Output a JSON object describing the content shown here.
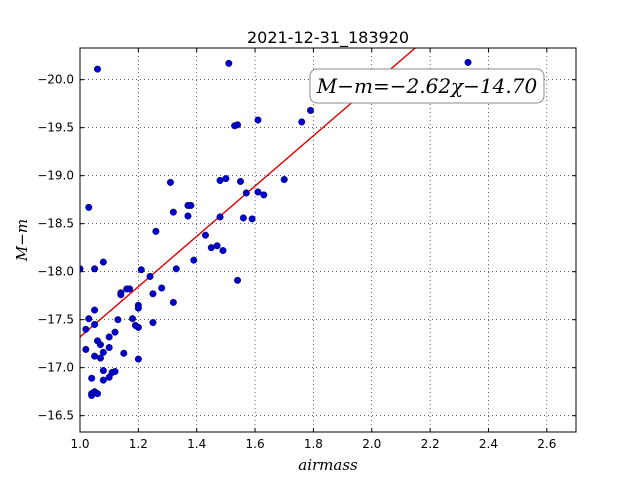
{
  "chart_data": {
    "type": "scatter",
    "title": "2021-12-31_183920",
    "xlabel": "airmass",
    "ylabel": "M−m",
    "xlim": [
      1.0,
      2.7
    ],
    "ylim": [
      -20.33,
      -16.33
    ],
    "y_inverted": true,
    "grid": true,
    "x_ticks": [
      1.0,
      1.2,
      1.4,
      1.6,
      1.8,
      2.0,
      2.2,
      2.4,
      2.6
    ],
    "x_tick_labels": [
      "1.0",
      "1.2",
      "1.4",
      "1.6",
      "1.8",
      "2.0",
      "2.2",
      "2.4",
      "2.6"
    ],
    "y_ticks": [
      -16.5,
      -17.0,
      -17.5,
      -18.0,
      -18.5,
      -19.0,
      -19.5,
      -20.0
    ],
    "y_tick_labels": [
      "−16.5",
      "−17.0",
      "−17.5",
      "−18.0",
      "−18.5",
      "−19.0",
      "−19.5",
      "−20.0"
    ],
    "annotation": "M−m=−2.62χ−14.70",
    "fit": {
      "slope": -2.62,
      "intercept": -14.7,
      "color": "#e00000"
    },
    "marker_color": "#0000cc",
    "points": [
      [
        1.0,
        -18.03
      ],
      [
        1.02,
        -17.19
      ],
      [
        1.02,
        -17.4
      ],
      [
        1.03,
        -17.51
      ],
      [
        1.03,
        -18.67
      ],
      [
        1.04,
        -16.89
      ],
      [
        1.04,
        -16.73
      ],
      [
        1.04,
        -16.71
      ],
      [
        1.05,
        -16.75
      ],
      [
        1.05,
        -17.12
      ],
      [
        1.05,
        -17.45
      ],
      [
        1.05,
        -17.6
      ],
      [
        1.05,
        -18.03
      ],
      [
        1.06,
        -16.73
      ],
      [
        1.06,
        -17.28
      ],
      [
        1.06,
        -20.11
      ],
      [
        1.07,
        -17.1
      ],
      [
        1.07,
        -17.24
      ],
      [
        1.08,
        -16.87
      ],
      [
        1.08,
        -16.97
      ],
      [
        1.08,
        -17.16
      ],
      [
        1.08,
        -18.1
      ],
      [
        1.1,
        -16.9
      ],
      [
        1.1,
        -17.21
      ],
      [
        1.1,
        -17.32
      ],
      [
        1.11,
        -16.95
      ],
      [
        1.12,
        -16.96
      ],
      [
        1.12,
        -17.37
      ],
      [
        1.13,
        -17.5
      ],
      [
        1.14,
        -17.78
      ],
      [
        1.14,
        -17.76
      ],
      [
        1.15,
        -17.15
      ],
      [
        1.16,
        -17.82
      ],
      [
        1.17,
        -17.82
      ],
      [
        1.18,
        -17.51
      ],
      [
        1.19,
        -17.44
      ],
      [
        1.2,
        -17.09
      ],
      [
        1.2,
        -17.42
      ],
      [
        1.2,
        -17.65
      ],
      [
        1.2,
        -17.62
      ],
      [
        1.21,
        -18.02
      ],
      [
        1.24,
        -17.95
      ],
      [
        1.25,
        -17.47
      ],
      [
        1.25,
        -17.77
      ],
      [
        1.26,
        -18.42
      ],
      [
        1.28,
        -17.83
      ],
      [
        1.31,
        -18.93
      ],
      [
        1.32,
        -18.62
      ],
      [
        1.32,
        -17.68
      ],
      [
        1.33,
        -18.03
      ],
      [
        1.37,
        -18.58
      ],
      [
        1.37,
        -18.69
      ],
      [
        1.38,
        -18.69
      ],
      [
        1.39,
        -18.12
      ],
      [
        1.43,
        -18.38
      ],
      [
        1.45,
        -18.25
      ],
      [
        1.47,
        -18.27
      ],
      [
        1.48,
        -18.57
      ],
      [
        1.48,
        -18.95
      ],
      [
        1.49,
        -18.22
      ],
      [
        1.5,
        -18.97
      ],
      [
        1.51,
        -20.17
      ],
      [
        1.53,
        -19.52
      ],
      [
        1.54,
        -19.53
      ],
      [
        1.54,
        -17.91
      ],
      [
        1.55,
        -18.94
      ],
      [
        1.56,
        -18.56
      ],
      [
        1.57,
        -18.82
      ],
      [
        1.59,
        -18.55
      ],
      [
        1.61,
        -18.83
      ],
      [
        1.61,
        -19.58
      ],
      [
        1.63,
        -18.8
      ],
      [
        1.7,
        -18.96
      ],
      [
        1.76,
        -19.56
      ],
      [
        1.79,
        -19.68
      ],
      [
        1.87,
        -19.83
      ],
      [
        2.16,
        -19.92
      ],
      [
        2.33,
        -20.18
      ],
      [
        2.45,
        -19.99
      ]
    ]
  }
}
